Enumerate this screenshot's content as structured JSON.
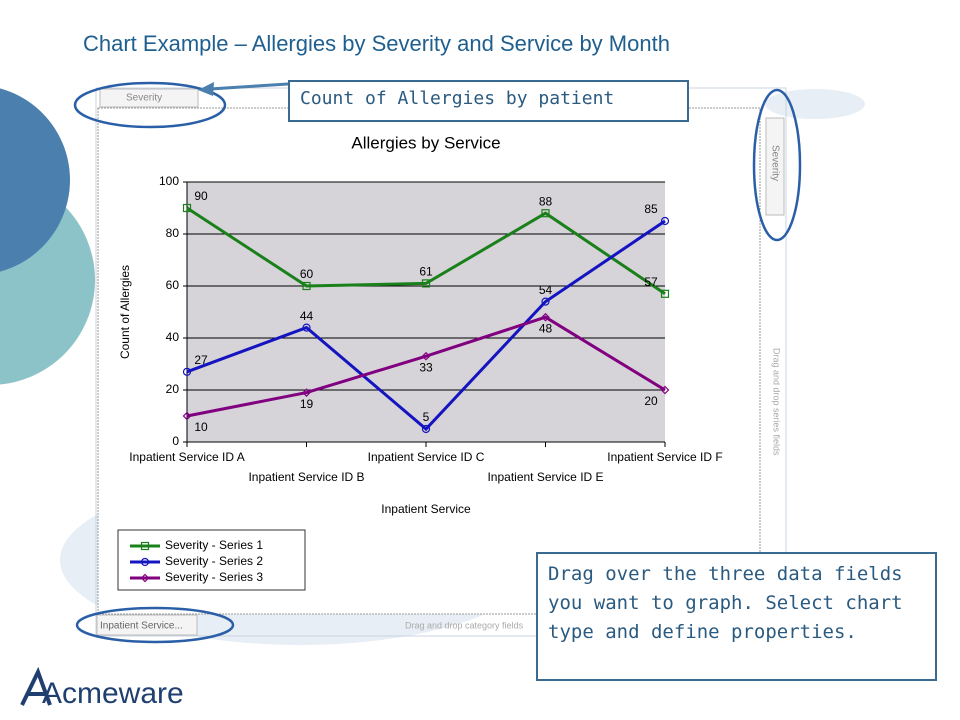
{
  "slide": {
    "title": "Chart Example – Allergies by Severity and Service by Month",
    "callout_top": "Count of Allergies by patient",
    "callout_bottom": "Drag over the three data fields you want to graph. Select chart type and define properties.",
    "tab_series": "Severity",
    "tab_series_right": "Severity",
    "drop_series": "Drag and drop series fields",
    "tab_category": "Inpatient Service...",
    "drop_category": "Drag and drop category fields",
    "logo": "Acmeware"
  },
  "chart_data": {
    "type": "line",
    "title": "Allergies by Service",
    "x_label": "Inpatient Service",
    "y_label": "Count of Allergies",
    "categories": [
      "Inpatient Service ID A",
      "Inpatient Service ID B",
      "Inpatient Service ID C",
      "Inpatient Service ID E",
      "Inpatient Service ID F"
    ],
    "series": [
      {
        "name": "Severity - Series 1",
        "color": "#1a801a",
        "marker": "square",
        "values": [
          90,
          60,
          61,
          88,
          57
        ]
      },
      {
        "name": "Severity - Series 2",
        "color": "#1414c0",
        "marker": "circle",
        "values": [
          27,
          44,
          5,
          54,
          85
        ]
      },
      {
        "name": "Severity - Series 3",
        "color": "#800080",
        "marker": "diamond",
        "values": [
          10,
          19,
          33,
          48,
          20
        ]
      }
    ],
    "ylim": [
      0,
      100
    ],
    "yticks": [
      0,
      20,
      40,
      60,
      80,
      100
    ],
    "grid": true,
    "legend": "bottom-left"
  }
}
